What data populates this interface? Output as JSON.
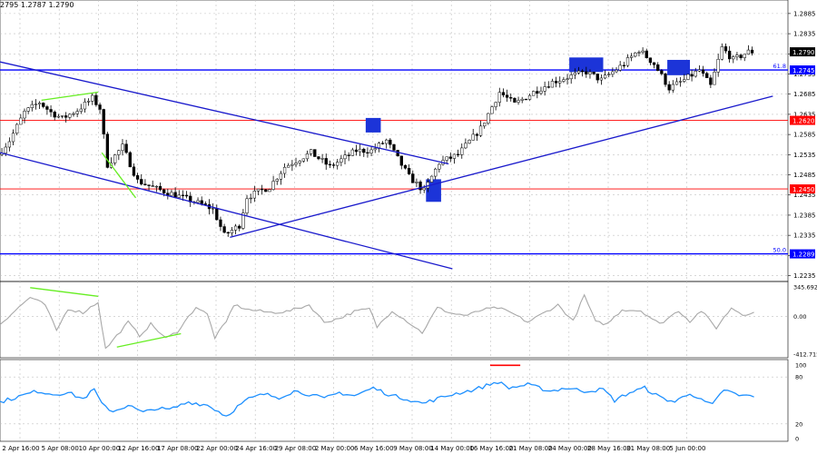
{
  "header": {
    "ohlc_text": "2795 1.2787 1.2790"
  },
  "colors": {
    "background": "#ffffff",
    "grid": "#c0c0c0",
    "candle": "#000000",
    "channel_line": "#1a1acc",
    "fib_line": "#0000ff",
    "red_level": "#ff0000",
    "highlight_box": "#1c34d8",
    "divergence": "#66ee22",
    "cci_line": "#a8a8a8",
    "rsi_line": "#1e90ff",
    "rsi_marker": "#ff0000",
    "current_price_tag": "#000000"
  },
  "chart_data": [
    {
      "type": "candlestick",
      "title": "",
      "x_labels": [
        "2 Apr 16:00",
        "5 Apr 08:00",
        "10 Apr 00:00",
        "12 Apr 16:00",
        "17 Apr 08:00",
        "22 Apr 00:00",
        "24 Apr 16:00",
        "29 Apr 08:00",
        "2 May 00:00",
        "6 May 16:00",
        "9 May 08:00",
        "14 May 00:00",
        "16 May 16:00",
        "21 May 08:00",
        "24 May 00:00",
        "28 May 16:00",
        "31 May 08:00",
        "5 Jun 00:00"
      ],
      "y_ticks": [
        1.2885,
        1.2835,
        1.2785,
        1.2735,
        1.2685,
        1.2635,
        1.2585,
        1.2535,
        1.2485,
        1.2435,
        1.2385,
        1.2335,
        1.2285,
        1.2235
      ],
      "ylim": [
        1.2225,
        1.2905
      ],
      "price_tags": [
        {
          "label": "1.2790",
          "value": 1.279,
          "kind": "current"
        },
        {
          "label": "1.2745",
          "value": 1.2745,
          "kind": "fib"
        },
        {
          "label": "1.2620",
          "value": 1.262,
          "kind": "red"
        },
        {
          "label": "1.2450",
          "value": 1.245,
          "kind": "red"
        },
        {
          "label": "1.2289",
          "value": 1.2289,
          "kind": "fib"
        }
      ],
      "horizontal_levels": [
        {
          "value": 1.2745,
          "label": "61.8",
          "kind": "fib"
        },
        {
          "value": 1.2289,
          "label": "50.0",
          "kind": "fib"
        },
        {
          "value": 1.262,
          "kind": "red"
        },
        {
          "value": 1.245,
          "kind": "red"
        }
      ],
      "anchors": [
        {
          "i": 0,
          "p": 1.2535
        },
        {
          "i": 3,
          "p": 1.257
        },
        {
          "i": 7,
          "p": 1.264
        },
        {
          "i": 11,
          "p": 1.2665
        },
        {
          "i": 14,
          "p": 1.264
        },
        {
          "i": 17,
          "p": 1.2625
        },
        {
          "i": 21,
          "p": 1.2645
        },
        {
          "i": 25,
          "p": 1.2675
        },
        {
          "i": 27,
          "p": 1.265
        },
        {
          "i": 29,
          "p": 1.251
        },
        {
          "i": 33,
          "p": 1.2555
        },
        {
          "i": 37,
          "p": 1.247
        },
        {
          "i": 42,
          "p": 1.245
        },
        {
          "i": 47,
          "p": 1.2435
        },
        {
          "i": 53,
          "p": 1.2415
        },
        {
          "i": 57,
          "p": 1.24
        },
        {
          "i": 60,
          "p": 1.2335
        },
        {
          "i": 64,
          "p": 1.236
        },
        {
          "i": 66,
          "p": 1.243
        },
        {
          "i": 72,
          "p": 1.2455
        },
        {
          "i": 76,
          "p": 1.2505
        },
        {
          "i": 83,
          "p": 1.254
        },
        {
          "i": 88,
          "p": 1.2505
        },
        {
          "i": 95,
          "p": 1.2545
        },
        {
          "i": 99,
          "p": 1.2545
        },
        {
          "i": 103,
          "p": 1.257
        },
        {
          "i": 109,
          "p": 1.248
        },
        {
          "i": 113,
          "p": 1.2445
        },
        {
          "i": 117,
          "p": 1.2515
        },
        {
          "i": 122,
          "p": 1.2535
        },
        {
          "i": 128,
          "p": 1.26
        },
        {
          "i": 133,
          "p": 1.269
        },
        {
          "i": 137,
          "p": 1.266
        },
        {
          "i": 142,
          "p": 1.269
        },
        {
          "i": 147,
          "p": 1.2715
        },
        {
          "i": 152,
          "p": 1.273
        },
        {
          "i": 156,
          "p": 1.274
        },
        {
          "i": 160,
          "p": 1.272
        },
        {
          "i": 166,
          "p": 1.276
        },
        {
          "i": 170,
          "p": 1.2795
        },
        {
          "i": 174,
          "p": 1.276
        },
        {
          "i": 178,
          "p": 1.27
        },
        {
          "i": 182,
          "p": 1.272
        },
        {
          "i": 186,
          "p": 1.2745
        },
        {
          "i": 189,
          "p": 1.2705
        },
        {
          "i": 192,
          "p": 1.28
        },
        {
          "i": 195,
          "p": 1.277
        },
        {
          "i": 199,
          "p": 1.279
        }
      ],
      "trend_lines": [
        {
          "name": "channel-upper",
          "from": {
            "i": 0,
            "p": 1.2765
          },
          "to": {
            "i": 119,
            "p": 1.2512
          }
        },
        {
          "name": "channel-lower",
          "from": {
            "i": 0,
            "p": 1.254
          },
          "to": {
            "i": 120,
            "p": 1.2252
          }
        },
        {
          "name": "support-trend",
          "from": {
            "i": 61,
            "p": 1.233
          },
          "to": {
            "i": 205,
            "p": 1.268
          }
        }
      ],
      "highlight_boxes": [
        {
          "i0": 97,
          "i1": 101,
          "p0": 1.2626,
          "p1": 1.259
        },
        {
          "i0": 113,
          "i1": 117,
          "p0": 1.2474,
          "p1": 1.2418
        },
        {
          "i0": 151,
          "i1": 160,
          "p0": 1.2776,
          "p1": 1.274
        },
        {
          "i0": 177,
          "i1": 183,
          "p0": 1.277,
          "p1": 1.2732
        }
      ],
      "divergence_lines": [
        {
          "from": {
            "i": 11,
            "p": 1.267
          },
          "to": {
            "i": 26,
            "p": 1.269
          }
        },
        {
          "from": {
            "i": 27,
            "p": 1.254
          },
          "to": {
            "i": 36,
            "p": 1.2428
          }
        }
      ]
    },
    {
      "type": "line",
      "title": "",
      "y_ticks": [
        "345.6926",
        "0.00",
        "-412.715"
      ],
      "ylim": [
        -412.715,
        345.6926
      ],
      "anchors": [
        {
          "i": 0,
          "v": -80
        },
        {
          "i": 4,
          "v": 60
        },
        {
          "i": 8,
          "v": 200
        },
        {
          "i": 12,
          "v": 120
        },
        {
          "i": 15,
          "v": -150
        },
        {
          "i": 18,
          "v": 80
        },
        {
          "i": 22,
          "v": 40
        },
        {
          "i": 26,
          "v": 150
        },
        {
          "i": 28,
          "v": -340
        },
        {
          "i": 31,
          "v": -200
        },
        {
          "i": 34,
          "v": -60
        },
        {
          "i": 37,
          "v": -200
        },
        {
          "i": 40,
          "v": -80
        },
        {
          "i": 44,
          "v": -230
        },
        {
          "i": 47,
          "v": -160
        },
        {
          "i": 52,
          "v": 100
        },
        {
          "i": 55,
          "v": 20
        },
        {
          "i": 57,
          "v": -220
        },
        {
          "i": 60,
          "v": -60
        },
        {
          "i": 62,
          "v": 120
        },
        {
          "i": 66,
          "v": 70
        },
        {
          "i": 72,
          "v": 40
        },
        {
          "i": 76,
          "v": 50
        },
        {
          "i": 82,
          "v": 120
        },
        {
          "i": 86,
          "v": -60
        },
        {
          "i": 90,
          "v": -20
        },
        {
          "i": 94,
          "v": 50
        },
        {
          "i": 98,
          "v": 80
        },
        {
          "i": 100,
          "v": -110
        },
        {
          "i": 104,
          "v": 60
        },
        {
          "i": 108,
          "v": -50
        },
        {
          "i": 112,
          "v": -170
        },
        {
          "i": 116,
          "v": 90
        },
        {
          "i": 120,
          "v": 30
        },
        {
          "i": 124,
          "v": 10
        },
        {
          "i": 128,
          "v": 70
        },
        {
          "i": 132,
          "v": 90
        },
        {
          "i": 136,
          "v": 30
        },
        {
          "i": 140,
          "v": -60
        },
        {
          "i": 144,
          "v": 30
        },
        {
          "i": 148,
          "v": 120
        },
        {
          "i": 152,
          "v": -50
        },
        {
          "i": 155,
          "v": 220
        },
        {
          "i": 158,
          "v": -60
        },
        {
          "i": 161,
          "v": -80
        },
        {
          "i": 165,
          "v": 70
        },
        {
          "i": 170,
          "v": 60
        },
        {
          "i": 175,
          "v": -80
        },
        {
          "i": 180,
          "v": 60
        },
        {
          "i": 183,
          "v": -50
        },
        {
          "i": 186,
          "v": 60
        },
        {
          "i": 190,
          "v": -120
        },
        {
          "i": 194,
          "v": 90
        },
        {
          "i": 197,
          "v": 20
        },
        {
          "i": 200,
          "v": 40
        }
      ],
      "divergence_lines": [
        {
          "from": {
            "i": 8,
            "v": 300
          },
          "to": {
            "i": 26,
            "v": 210
          }
        },
        {
          "from": {
            "i": 31,
            "v": -320
          },
          "to": {
            "i": 48,
            "v": -180
          }
        }
      ]
    },
    {
      "type": "line",
      "title": "",
      "y_ticks": [
        "100",
        "80",
        "20",
        "0"
      ],
      "ylim": [
        0,
        100
      ],
      "anchors": [
        {
          "i": 0,
          "v": 48
        },
        {
          "i": 5,
          "v": 55
        },
        {
          "i": 10,
          "v": 62
        },
        {
          "i": 14,
          "v": 58
        },
        {
          "i": 18,
          "v": 60
        },
        {
          "i": 22,
          "v": 52
        },
        {
          "i": 25,
          "v": 64
        },
        {
          "i": 27,
          "v": 45
        },
        {
          "i": 30,
          "v": 36
        },
        {
          "i": 34,
          "v": 44
        },
        {
          "i": 38,
          "v": 34
        },
        {
          "i": 41,
          "v": 40
        },
        {
          "i": 45,
          "v": 38
        },
        {
          "i": 50,
          "v": 48
        },
        {
          "i": 55,
          "v": 44
        },
        {
          "i": 58,
          "v": 36
        },
        {
          "i": 60,
          "v": 30
        },
        {
          "i": 63,
          "v": 42
        },
        {
          "i": 66,
          "v": 52
        },
        {
          "i": 70,
          "v": 58
        },
        {
          "i": 74,
          "v": 54
        },
        {
          "i": 78,
          "v": 62
        },
        {
          "i": 82,
          "v": 58
        },
        {
          "i": 86,
          "v": 52
        },
        {
          "i": 90,
          "v": 60
        },
        {
          "i": 94,
          "v": 56
        },
        {
          "i": 99,
          "v": 66
        },
        {
          "i": 104,
          "v": 56
        },
        {
          "i": 108,
          "v": 52
        },
        {
          "i": 112,
          "v": 46
        },
        {
          "i": 116,
          "v": 52
        },
        {
          "i": 120,
          "v": 58
        },
        {
          "i": 126,
          "v": 64
        },
        {
          "i": 132,
          "v": 74
        },
        {
          "i": 135,
          "v": 66
        },
        {
          "i": 140,
          "v": 70
        },
        {
          "i": 146,
          "v": 62
        },
        {
          "i": 150,
          "v": 66
        },
        {
          "i": 155,
          "v": 62
        },
        {
          "i": 160,
          "v": 64
        },
        {
          "i": 163,
          "v": 50
        },
        {
          "i": 167,
          "v": 60
        },
        {
          "i": 171,
          "v": 66
        },
        {
          "i": 175,
          "v": 54
        },
        {
          "i": 179,
          "v": 48
        },
        {
          "i": 183,
          "v": 60
        },
        {
          "i": 186,
          "v": 50
        },
        {
          "i": 189,
          "v": 44
        },
        {
          "i": 192,
          "v": 64
        },
        {
          "i": 196,
          "v": 56
        },
        {
          "i": 200,
          "v": 56
        }
      ],
      "marker": {
        "from": {
          "i": 130,
          "v": 95
        },
        "to": {
          "i": 138,
          "v": 95
        }
      }
    }
  ]
}
